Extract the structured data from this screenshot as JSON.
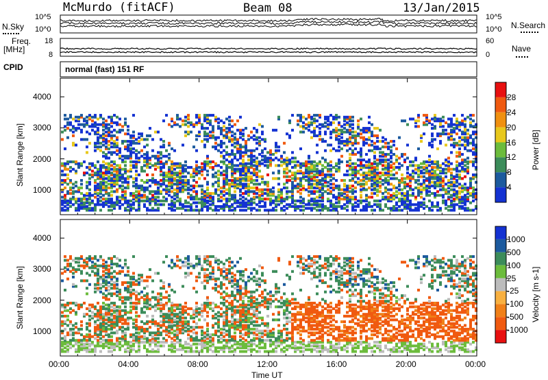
{
  "header": {
    "station": "McMurdo (fitACF)",
    "beam": "Beam 08",
    "date": "13/Jan/2015"
  },
  "noise_panel": {
    "left_label": "N.Sky",
    "right_label": "N.Search",
    "tick_top": "10^5",
    "tick_bottom": "10^0",
    "right_tick_top": "10^5",
    "right_tick_bottom": "10^0"
  },
  "freq_panel": {
    "left_label": "Freq.",
    "left_unit": "[MHz]",
    "tick_top": "18",
    "tick_bottom": "8",
    "right_label": "Nave",
    "right_tick_top": "60",
    "right_tick_bottom": "0"
  },
  "cpid_panel": {
    "label": "CPID",
    "text": "normal (fast) 151 RF"
  },
  "chart_data": [
    {
      "type": "heatmap",
      "name": "power",
      "ylabel": "Slant Range [km]",
      "ylim": [
        200,
        4600
      ],
      "yticks": [
        "1000",
        "2000",
        "3000",
        "4000"
      ],
      "colorbar_label": "Power [dB]",
      "colorbar_ticks": [
        "4",
        "8",
        "12",
        "16",
        "20",
        "24",
        "28"
      ],
      "colors": [
        "#1432d2",
        "#1c5a9e",
        "#3c8c5a",
        "#6cbc3c",
        "#e8c81c",
        "#f09010",
        "#f05a10",
        "#e81010"
      ]
    },
    {
      "type": "heatmap",
      "name": "velocity",
      "ylabel": "Slant Range [km]",
      "ylim": [
        200,
        4600
      ],
      "yticks": [
        "1000",
        "2000",
        "3000",
        "4000"
      ],
      "colorbar_label": "Velocity [m s-1]",
      "colorbar_ticks": [
        "1000",
        "500",
        "100",
        "25",
        "-25",
        "-100",
        "-500",
        "-1000"
      ],
      "colors": [
        "#1432d2",
        "#1c5a9e",
        "#3c8c5a",
        "#6cbc3c",
        "#bcbcbc",
        "#f8b040",
        "#f08018",
        "#f05a10",
        "#e81010"
      ]
    }
  ],
  "x_axis": {
    "label": "Time UT",
    "ticks": [
      "00:00",
      "04:00",
      "08:00",
      "12:00",
      "16:00",
      "20:00",
      "00:00"
    ]
  }
}
